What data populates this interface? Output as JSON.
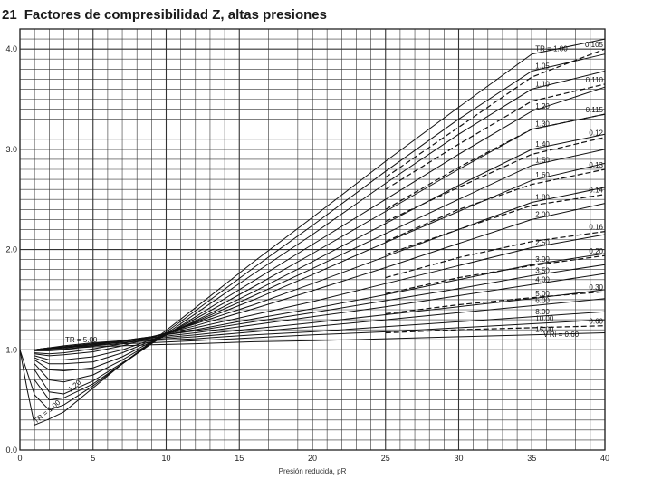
{
  "figure": {
    "number": "21",
    "title": "Factores de compresibilidad Z, altas presiones"
  },
  "chart_data": {
    "type": "line",
    "title": "Factores de compresibilidad Z, altas presiones",
    "xlabel": "Presión reducida, pR",
    "ylabel": "",
    "xlim": [
      0,
      40
    ],
    "ylim": [
      0,
      4.2
    ],
    "x_ticks": [
      "0",
      "5",
      "10",
      "15",
      "20",
      "25",
      "30",
      "35",
      "40"
    ],
    "y_ticks": [
      "0.0",
      "1.0",
      "2.0",
      "3.0",
      "4.0"
    ],
    "grid": true,
    "series": [
      {
        "name": "TR = 1.00",
        "x": [
          0,
          0.5,
          1,
          2,
          3,
          5,
          7,
          9,
          12,
          16,
          20,
          25,
          30,
          35,
          40
        ],
        "y": [
          1.0,
          0.6,
          0.25,
          0.31,
          0.38,
          0.62,
          0.86,
          1.08,
          1.42,
          1.88,
          2.32,
          2.88,
          3.42,
          3.95,
          4.1
        ]
      },
      {
        "name": "1.05",
        "x": [
          0,
          1,
          2,
          3,
          5,
          7,
          9,
          12,
          16,
          20,
          25,
          30,
          35,
          40
        ],
        "y": [
          1.0,
          0.55,
          0.4,
          0.45,
          0.64,
          0.86,
          1.07,
          1.39,
          1.82,
          2.24,
          2.78,
          3.3,
          3.78,
          3.95
        ]
      },
      {
        "name": "1.10",
        "x": [
          1,
          2,
          3,
          5,
          7,
          9,
          12,
          16,
          20,
          25,
          30,
          35,
          40
        ],
        "y": [
          0.7,
          0.5,
          0.52,
          0.66,
          0.86,
          1.06,
          1.36,
          1.76,
          2.15,
          2.66,
          3.15,
          3.6,
          3.78
        ]
      },
      {
        "name": "1.20",
        "x": [
          1,
          2,
          3,
          5,
          7,
          9,
          12,
          16,
          20,
          25,
          30,
          35,
          40
        ],
        "y": [
          0.8,
          0.58,
          0.56,
          0.69,
          0.87,
          1.06,
          1.33,
          1.69,
          2.05,
          2.5,
          2.95,
          3.38,
          3.62
        ]
      },
      {
        "name": "1.30",
        "x": [
          1,
          2,
          3,
          5,
          7,
          9,
          12,
          16,
          20,
          25,
          30,
          35,
          40
        ],
        "y": [
          0.86,
          0.7,
          0.68,
          0.75,
          0.9,
          1.07,
          1.31,
          1.63,
          1.96,
          2.38,
          2.8,
          3.2,
          3.35
        ]
      },
      {
        "name": "1.40",
        "x": [
          1,
          2,
          3,
          5,
          7,
          9,
          12,
          16,
          20,
          25,
          30,
          35,
          40
        ],
        "y": [
          0.9,
          0.8,
          0.79,
          0.82,
          0.93,
          1.08,
          1.29,
          1.58,
          1.88,
          2.26,
          2.64,
          3.0,
          3.15
        ]
      },
      {
        "name": "1.50",
        "x": [
          1,
          2,
          3,
          5,
          7,
          9,
          12,
          16,
          20,
          25,
          30,
          35,
          40
        ],
        "y": [
          0.92,
          0.86,
          0.86,
          0.88,
          0.97,
          1.09,
          1.28,
          1.54,
          1.81,
          2.16,
          2.5,
          2.84,
          3.0
        ]
      },
      {
        "name": "1.60",
        "x": [
          1,
          2,
          3,
          5,
          7,
          9,
          12,
          16,
          20,
          25,
          30,
          35,
          40
        ],
        "y": [
          0.94,
          0.9,
          0.9,
          0.93,
          1.0,
          1.1,
          1.27,
          1.5,
          1.75,
          2.07,
          2.38,
          2.69,
          2.86
        ]
      },
      {
        "name": "1.80",
        "x": [
          1,
          2,
          3,
          5,
          7,
          9,
          12,
          16,
          20,
          25,
          30,
          35,
          40
        ],
        "y": [
          0.96,
          0.94,
          0.95,
          0.98,
          1.04,
          1.12,
          1.26,
          1.45,
          1.66,
          1.93,
          2.2,
          2.47,
          2.62
        ]
      },
      {
        "name": "2.00",
        "x": [
          1,
          2,
          3,
          5,
          7,
          9,
          12,
          16,
          20,
          25,
          30,
          35,
          40
        ],
        "y": [
          0.97,
          0.96,
          0.97,
          1.01,
          1.06,
          1.13,
          1.24,
          1.41,
          1.59,
          1.82,
          2.06,
          2.3,
          2.46
        ]
      },
      {
        "name": "2.50",
        "x": [
          1,
          2,
          3,
          5,
          7,
          9,
          12,
          16,
          20,
          25,
          30,
          35,
          40
        ],
        "y": [
          0.99,
          0.99,
          1.0,
          1.04,
          1.08,
          1.13,
          1.22,
          1.35,
          1.48,
          1.66,
          1.84,
          2.02,
          2.15
        ]
      },
      {
        "name": "3.00",
        "x": [
          1,
          2,
          3,
          5,
          7,
          9,
          12,
          16,
          20,
          25,
          30,
          35,
          40
        ],
        "y": [
          1.0,
          1.01,
          1.02,
          1.05,
          1.09,
          1.13,
          1.2,
          1.31,
          1.41,
          1.55,
          1.7,
          1.85,
          1.96
        ]
      },
      {
        "name": "3.50",
        "x": [
          1,
          2,
          3,
          5,
          7,
          9,
          12,
          16,
          20,
          25,
          30,
          35,
          40
        ],
        "y": [
          1.0,
          1.01,
          1.03,
          1.06,
          1.09,
          1.13,
          1.19,
          1.28,
          1.37,
          1.49,
          1.61,
          1.74,
          1.85
        ]
      },
      {
        "name": "4.00",
        "x": [
          1,
          2,
          3,
          5,
          7,
          9,
          12,
          16,
          20,
          25,
          30,
          35,
          40
        ],
        "y": [
          1.0,
          1.02,
          1.03,
          1.06,
          1.09,
          1.12,
          1.17,
          1.25,
          1.33,
          1.43,
          1.54,
          1.65,
          1.76
        ]
      },
      {
        "name": "5.00",
        "x": [
          1,
          2,
          3,
          5,
          7,
          9,
          12,
          16,
          20,
          25,
          30,
          35,
          40
        ],
        "y": [
          1.0,
          1.02,
          1.04,
          1.07,
          1.09,
          1.11,
          1.15,
          1.21,
          1.27,
          1.35,
          1.43,
          1.51,
          1.6
        ]
      },
      {
        "name": "6.00",
        "x": [
          1,
          2,
          3,
          5,
          7,
          9,
          12,
          16,
          20,
          25,
          30,
          35,
          40
        ],
        "y": [
          1.0,
          1.02,
          1.03,
          1.06,
          1.08,
          1.1,
          1.13,
          1.18,
          1.23,
          1.3,
          1.37,
          1.44,
          1.51
        ]
      },
      {
        "name": "8.00",
        "x": [
          1,
          2,
          3,
          5,
          7,
          9,
          12,
          16,
          20,
          25,
          30,
          35,
          40
        ],
        "y": [
          1.0,
          1.02,
          1.03,
          1.05,
          1.07,
          1.09,
          1.11,
          1.15,
          1.18,
          1.23,
          1.28,
          1.33,
          1.38
        ]
      },
      {
        "name": "10.00",
        "x": [
          1,
          2,
          3,
          5,
          7,
          9,
          12,
          16,
          20,
          25,
          30,
          35,
          40
        ],
        "y": [
          1.0,
          1.01,
          1.02,
          1.04,
          1.06,
          1.07,
          1.09,
          1.12,
          1.15,
          1.18,
          1.22,
          1.26,
          1.3
        ]
      },
      {
        "name": "15.00",
        "x": [
          1,
          2,
          3,
          5,
          7,
          9,
          12,
          16,
          20,
          25,
          30,
          35,
          40
        ],
        "y": [
          1.0,
          1.01,
          1.01,
          1.03,
          1.04,
          1.05,
          1.06,
          1.08,
          1.09,
          1.11,
          1.13,
          1.15,
          1.17
        ]
      },
      {
        "name": "0.105",
        "dashed": true,
        "x": [
          25,
          30,
          35,
          40
        ],
        "y": [
          2.72,
          3.22,
          3.72,
          4.0
        ]
      },
      {
        "name": "0.110",
        "dashed": true,
        "x": [
          25,
          30,
          35,
          40
        ],
        "y": [
          2.6,
          3.05,
          3.48,
          3.65
        ]
      },
      {
        "name": "0.115",
        "dashed": true,
        "x": [
          25,
          30,
          35,
          40
        ],
        "y": [
          2.4,
          2.82,
          3.2,
          3.35
        ]
      },
      {
        "name": "0.12",
        "dashed": true,
        "x": [
          25,
          30,
          35,
          40
        ],
        "y": [
          2.28,
          2.62,
          2.95,
          3.12
        ]
      },
      {
        "name": "0.13",
        "dashed": true,
        "x": [
          25,
          30,
          35,
          40
        ],
        "y": [
          2.08,
          2.4,
          2.65,
          2.8
        ]
      },
      {
        "name": "0.14",
        "dashed": true,
        "x": [
          25,
          30,
          35,
          40
        ],
        "y": [
          1.95,
          2.2,
          2.44,
          2.55
        ]
      },
      {
        "name": "0.16",
        "dashed": true,
        "x": [
          25,
          30,
          35,
          40
        ],
        "y": [
          1.72,
          1.92,
          2.08,
          2.18
        ]
      },
      {
        "name": "0.20",
        "dashed": true,
        "x": [
          25,
          30,
          35,
          40
        ],
        "y": [
          1.56,
          1.72,
          1.84,
          1.94
        ]
      },
      {
        "name": "0.30",
        "dashed": true,
        "x": [
          25,
          30,
          35,
          40
        ],
        "y": [
          1.36,
          1.45,
          1.52,
          1.58
        ]
      },
      {
        "name": "0.60",
        "dashed": true,
        "x": [
          25,
          30,
          35,
          40
        ],
        "y": [
          1.17,
          1.2,
          1.22,
          1.24
        ]
      }
    ],
    "annotations": [
      "TR = 5.00",
      "1.20",
      "TR = 1.00",
      "V'Ri = 0.60"
    ]
  }
}
